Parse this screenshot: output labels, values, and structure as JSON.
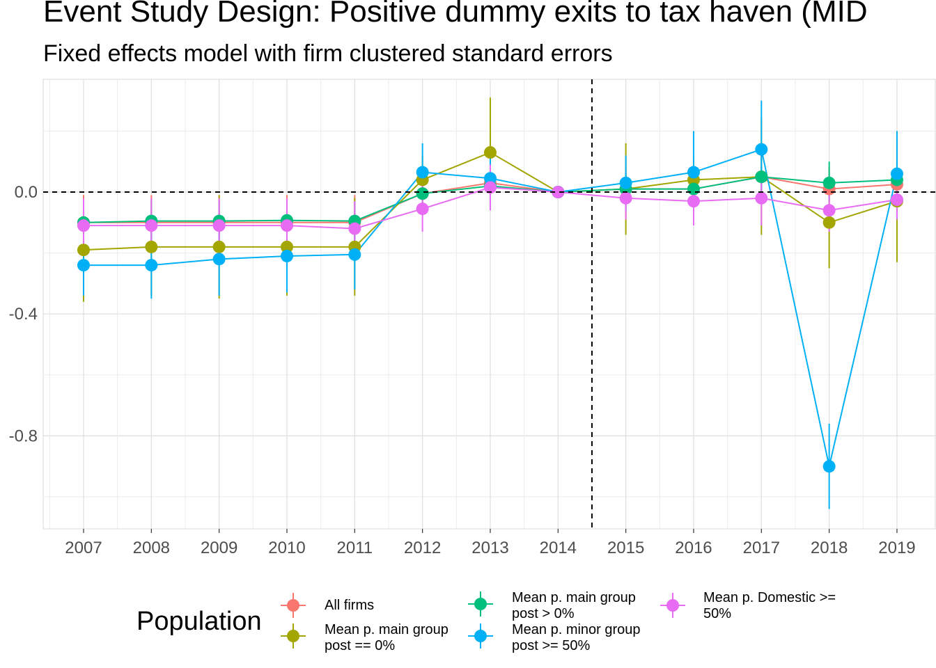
{
  "chart_data": {
    "type": "line",
    "title": "Event Study Design: Positive dummy exits to tax haven (MID",
    "subtitle": "Fixed effects model with firm clustered standard errors",
    "xlabel": "",
    "ylabel": "",
    "x": [
      2007,
      2008,
      2009,
      2010,
      2011,
      2012,
      2013,
      2014,
      2015,
      2016,
      2017,
      2018,
      2019
    ],
    "ylim": [
      -1.1,
      0.37
    ],
    "yticks": [
      0.0,
      -0.4,
      -0.8
    ],
    "ytick_labels": [
      "0.0",
      "-0.4",
      "-0.8"
    ],
    "reference_lines": {
      "y": 0,
      "x": 2014.5
    },
    "grid": true,
    "legend_title": "Population",
    "legend_position": "bottom",
    "series": [
      {
        "name": "All firms",
        "color": "#F8766D",
        "values": [
          -0.1,
          -0.1,
          -0.1,
          -0.1,
          -0.1,
          -0.005,
          0.03,
          0.0,
          0.01,
          0.01,
          0.05,
          0.01,
          0.025
        ],
        "lower": [
          -0.19,
          -0.19,
          -0.19,
          -0.19,
          -0.19,
          -0.07,
          -0.03,
          0.0,
          -0.05,
          -0.05,
          -0.02,
          -0.06,
          -0.04
        ],
        "upper": [
          -0.01,
          -0.01,
          -0.01,
          -0.01,
          -0.01,
          0.06,
          0.09,
          0.0,
          0.07,
          0.07,
          0.12,
          0.08,
          0.09
        ]
      },
      {
        "name": "Mean p. main group post == 0%",
        "color": "#A3A500",
        "values": [
          -0.19,
          -0.18,
          -0.18,
          -0.18,
          -0.18,
          0.04,
          0.13,
          0.0,
          0.01,
          0.04,
          0.05,
          -0.1,
          -0.03
        ],
        "lower": [
          -0.36,
          -0.34,
          -0.35,
          -0.34,
          -0.34,
          -0.04,
          -0.05,
          0.0,
          -0.14,
          -0.04,
          -0.14,
          -0.25,
          -0.23
        ],
        "upper": [
          -0.02,
          -0.02,
          -0.01,
          -0.02,
          -0.02,
          0.12,
          0.31,
          0.0,
          0.16,
          0.12,
          0.24,
          0.05,
          0.17
        ]
      },
      {
        "name": "Mean p. main group post > 0%",
        "color": "#00BF7D",
        "values": [
          -0.1,
          -0.095,
          -0.095,
          -0.093,
          -0.095,
          -0.005,
          0.02,
          0.0,
          0.01,
          0.01,
          0.05,
          0.03,
          0.04
        ],
        "lower": [
          -0.17,
          -0.16,
          -0.16,
          -0.16,
          -0.16,
          -0.06,
          -0.03,
          0.0,
          -0.04,
          -0.04,
          -0.01,
          -0.03,
          -0.02
        ],
        "upper": [
          -0.03,
          -0.03,
          -0.03,
          -0.03,
          -0.03,
          0.05,
          0.07,
          0.0,
          0.06,
          0.06,
          0.11,
          0.1,
          0.1
        ]
      },
      {
        "name": "Mean p. minor group post >= 50%",
        "color": "#00B0F6",
        "values": [
          -0.24,
          -0.24,
          -0.22,
          -0.21,
          -0.205,
          0.065,
          0.045,
          0.0,
          0.03,
          0.065,
          0.14,
          -0.9,
          0.06
        ],
        "lower": [
          -0.34,
          -0.35,
          -0.34,
          -0.33,
          -0.32,
          -0.03,
          -0.06,
          0.0,
          -0.06,
          -0.05,
          -0.03,
          -1.04,
          -0.08
        ],
        "upper": [
          -0.14,
          -0.13,
          -0.1,
          -0.09,
          -0.09,
          0.16,
          0.15,
          0.0,
          0.12,
          0.2,
          0.3,
          -0.76,
          0.2
        ]
      },
      {
        "name": "Mean p. Domestic >= 50%",
        "color": "#E76BF3",
        "values": [
          -0.11,
          -0.11,
          -0.11,
          -0.11,
          -0.12,
          -0.055,
          0.015,
          0.0,
          -0.02,
          -0.03,
          -0.02,
          -0.06,
          -0.025
        ],
        "lower": [
          -0.2,
          -0.2,
          -0.2,
          -0.2,
          -0.21,
          -0.13,
          -0.06,
          0.0,
          -0.09,
          -0.11,
          -0.11,
          -0.13,
          -0.09
        ],
        "upper": [
          -0.02,
          -0.02,
          -0.02,
          -0.02,
          -0.03,
          0.02,
          0.09,
          0.0,
          0.05,
          0.05,
          0.07,
          0.01,
          0.04
        ]
      }
    ]
  },
  "legend": {
    "title": "Population",
    "items": [
      {
        "line1": "All firms",
        "line2": ""
      },
      {
        "line1": "Mean p. main group",
        "line2": "post == 0%"
      },
      {
        "line1": "Mean p. main group",
        "line2": "post > 0%"
      },
      {
        "line1": "Mean p. minor group",
        "line2": "post >= 50%"
      },
      {
        "line1": "Mean p. Domestic >=",
        "line2": "50%"
      }
    ]
  }
}
